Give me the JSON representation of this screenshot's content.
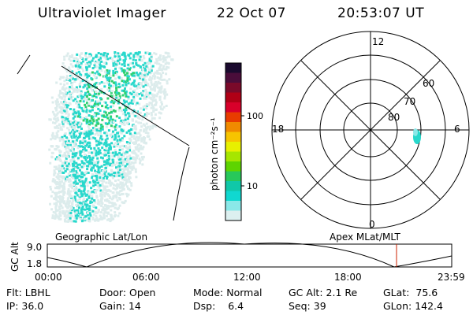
{
  "header": {
    "title": "Ultraviolet Imager",
    "date": "22 Oct 07",
    "time": "20:53:07 UT"
  },
  "colorbar": {
    "label": "photon cm⁻²s⁻¹",
    "ticks": [
      "100",
      "10"
    ],
    "colors": [
      "#1a0a2e",
      "#4a0d3a",
      "#7a0a2a",
      "#b00016",
      "#d8002a",
      "#e83c00",
      "#f08a00",
      "#f7c400",
      "#e8f000",
      "#a6e600",
      "#5ed400",
      "#28c85a",
      "#10c8a8",
      "#10d8d0",
      "#8ae8e8",
      "#dcf0f0"
    ]
  },
  "polar": {
    "mlt_labels": {
      "top": "12",
      "left": "18",
      "right": "6",
      "bottom": "0"
    },
    "lat_labels": [
      "60",
      "70",
      "80"
    ]
  },
  "panel_labels": {
    "geographic": "Geographic Lat/Lon",
    "apex": "Apex MLat/MLT"
  },
  "altitude_plot": {
    "axis_label": "GC Alt",
    "y_ticks": [
      "9.0",
      "1.8"
    ],
    "x_ticks": [
      "00:00",
      "06:00",
      "12:00",
      "18:00",
      "23:59"
    ],
    "marker_color": "#cc2200"
  },
  "info": {
    "row1": [
      {
        "key": "Flt:",
        "val": "LBHL"
      },
      {
        "key": "Door:",
        "val": "Open"
      },
      {
        "key": "Mode:",
        "val": "Normal"
      },
      {
        "key": "GC Alt:",
        "val": "2.1 Re"
      },
      {
        "key": "GLat:",
        "val": "75.6"
      }
    ],
    "row2": [
      {
        "key": "IP:",
        "val": "36.0"
      },
      {
        "key": "Gain:",
        "val": "14"
      },
      {
        "key": "Dsp:",
        "val": "6.4"
      },
      {
        "key": "Seq:",
        "val": "39"
      },
      {
        "key": "GLon:",
        "val": "142.4"
      }
    ]
  },
  "colors": {
    "aurora_low": "#dcecec",
    "aurora_mid": "#28d8cc",
    "aurora_high": "#30d070"
  }
}
